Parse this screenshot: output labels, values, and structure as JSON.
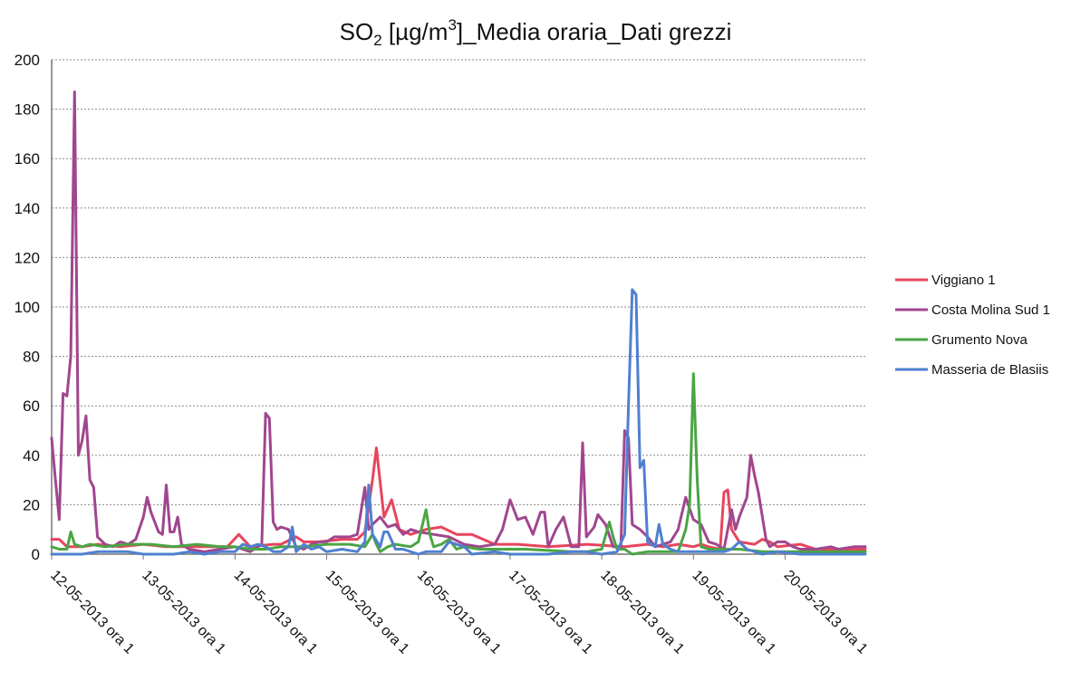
{
  "chart_data": {
    "type": "line",
    "title": {
      "main": "SO",
      "sub": "2",
      "unit_start": " [µg/m",
      "unit_sup": "3",
      "rest": "]_Media oraria_Dati grezzi"
    },
    "xlabel": "",
    "ylabel": "",
    "ylim": [
      0,
      200
    ],
    "yticks": [
      0,
      20,
      40,
      60,
      80,
      100,
      120,
      140,
      160,
      180,
      200
    ],
    "x_range": [
      0,
      213
    ],
    "grid": true,
    "legend": "right",
    "x_tick_positions": [
      0,
      24,
      48,
      72,
      96,
      120,
      144,
      168,
      192
    ],
    "x_tick_labels": [
      "12-05-2013 ora 1",
      "13-05-2013 ora 1",
      "14-05-2013 ora 1",
      "15-05-2013 ora 1",
      "16-05-2013 ora 1",
      "17-05-2013 ora 1",
      "18-05-2013 ora 1",
      "19-05-2013 ora 1",
      "20-05-2013 ora 1"
    ],
    "series": [
      {
        "name": "Viggiano 1",
        "color": "#e8455e",
        "points": [
          [
            0,
            6
          ],
          [
            2,
            6
          ],
          [
            4,
            3
          ],
          [
            8,
            3
          ],
          [
            12,
            4
          ],
          [
            18,
            3
          ],
          [
            24,
            4
          ],
          [
            30,
            3
          ],
          [
            40,
            3
          ],
          [
            46,
            3
          ],
          [
            49,
            8
          ],
          [
            52,
            3
          ],
          [
            58,
            4
          ],
          [
            60,
            4
          ],
          [
            64,
            7
          ],
          [
            66,
            5
          ],
          [
            70,
            5
          ],
          [
            76,
            6
          ],
          [
            80,
            6
          ],
          [
            82,
            9
          ],
          [
            84,
            30
          ],
          [
            85,
            43
          ],
          [
            87,
            15
          ],
          [
            89,
            22
          ],
          [
            91,
            10
          ],
          [
            94,
            8
          ],
          [
            98,
            10
          ],
          [
            102,
            11
          ],
          [
            106,
            8
          ],
          [
            110,
            8
          ],
          [
            116,
            4
          ],
          [
            122,
            4
          ],
          [
            130,
            3
          ],
          [
            140,
            4
          ],
          [
            150,
            3
          ],
          [
            156,
            4
          ],
          [
            160,
            3
          ],
          [
            164,
            4
          ],
          [
            168,
            3
          ],
          [
            170,
            4
          ],
          [
            172,
            3
          ],
          [
            175,
            2
          ],
          [
            176,
            25
          ],
          [
            177,
            26
          ],
          [
            178,
            10
          ],
          [
            180,
            5
          ],
          [
            184,
            4
          ],
          [
            186,
            6
          ],
          [
            188,
            5
          ],
          [
            190,
            3
          ],
          [
            196,
            4
          ],
          [
            200,
            2
          ],
          [
            206,
            2
          ],
          [
            213,
            2
          ]
        ]
      },
      {
        "name": "Costa Molina Sud 1",
        "color": "#a0468f",
        "points": [
          [
            0,
            47
          ],
          [
            1,
            30
          ],
          [
            2,
            14
          ],
          [
            3,
            65
          ],
          [
            4,
            64
          ],
          [
            5,
            80
          ],
          [
            6,
            187
          ],
          [
            7,
            40
          ],
          [
            8,
            46
          ],
          [
            9,
            56
          ],
          [
            10,
            30
          ],
          [
            11,
            27
          ],
          [
            12,
            7
          ],
          [
            14,
            4
          ],
          [
            16,
            3
          ],
          [
            18,
            5
          ],
          [
            20,
            4
          ],
          [
            22,
            6
          ],
          [
            24,
            15
          ],
          [
            25,
            23
          ],
          [
            26,
            17
          ],
          [
            28,
            9
          ],
          [
            29,
            8
          ],
          [
            30,
            28
          ],
          [
            31,
            9
          ],
          [
            32,
            9
          ],
          [
            33,
            15
          ],
          [
            34,
            4
          ],
          [
            36,
            2
          ],
          [
            40,
            1
          ],
          [
            44,
            2
          ],
          [
            48,
            3
          ],
          [
            50,
            2
          ],
          [
            52,
            1
          ],
          [
            55,
            4
          ],
          [
            56,
            57
          ],
          [
            57,
            55
          ],
          [
            58,
            13
          ],
          [
            59,
            10
          ],
          [
            60,
            11
          ],
          [
            62,
            10
          ],
          [
            64,
            3
          ],
          [
            66,
            2
          ],
          [
            68,
            4
          ],
          [
            70,
            5
          ],
          [
            72,
            5
          ],
          [
            74,
            7
          ],
          [
            76,
            7
          ],
          [
            78,
            7
          ],
          [
            80,
            8
          ],
          [
            82,
            27
          ],
          [
            83,
            10
          ],
          [
            84,
            12
          ],
          [
            86,
            15
          ],
          [
            88,
            11
          ],
          [
            90,
            12
          ],
          [
            92,
            8
          ],
          [
            94,
            10
          ],
          [
            96,
            9
          ],
          [
            100,
            8
          ],
          [
            104,
            7
          ],
          [
            108,
            4
          ],
          [
            112,
            3
          ],
          [
            116,
            4
          ],
          [
            118,
            10
          ],
          [
            120,
            22
          ],
          [
            122,
            14
          ],
          [
            124,
            15
          ],
          [
            126,
            8
          ],
          [
            128,
            17
          ],
          [
            129,
            17
          ],
          [
            130,
            3
          ],
          [
            132,
            10
          ],
          [
            134,
            15
          ],
          [
            136,
            3
          ],
          [
            138,
            3
          ],
          [
            139,
            45
          ],
          [
            140,
            7
          ],
          [
            142,
            11
          ],
          [
            143,
            16
          ],
          [
            145,
            12
          ],
          [
            147,
            3
          ],
          [
            149,
            3
          ],
          [
            150,
            50
          ],
          [
            151,
            47
          ],
          [
            152,
            12
          ],
          [
            154,
            10
          ],
          [
            156,
            7
          ],
          [
            158,
            3
          ],
          [
            162,
            5
          ],
          [
            164,
            10
          ],
          [
            166,
            23
          ],
          [
            168,
            14
          ],
          [
            170,
            12
          ],
          [
            172,
            5
          ],
          [
            174,
            4
          ],
          [
            176,
            2
          ],
          [
            178,
            18
          ],
          [
            179,
            10
          ],
          [
            180,
            15
          ],
          [
            182,
            23
          ],
          [
            183,
            40
          ],
          [
            184,
            32
          ],
          [
            185,
            25
          ],
          [
            187,
            6
          ],
          [
            188,
            3
          ],
          [
            190,
            5
          ],
          [
            192,
            5
          ],
          [
            194,
            3
          ],
          [
            196,
            2
          ],
          [
            200,
            2
          ],
          [
            204,
            3
          ],
          [
            206,
            2
          ],
          [
            210,
            3
          ],
          [
            213,
            3
          ]
        ]
      },
      {
        "name": "Grumento Nova",
        "color": "#4aa544",
        "points": [
          [
            0,
            3
          ],
          [
            2,
            2
          ],
          [
            4,
            2
          ],
          [
            5,
            9
          ],
          [
            6,
            4
          ],
          [
            8,
            3
          ],
          [
            10,
            4
          ],
          [
            14,
            3
          ],
          [
            20,
            4
          ],
          [
            26,
            4
          ],
          [
            32,
            3
          ],
          [
            38,
            4
          ],
          [
            44,
            3
          ],
          [
            48,
            3
          ],
          [
            52,
            2
          ],
          [
            56,
            2
          ],
          [
            60,
            3
          ],
          [
            66,
            3
          ],
          [
            72,
            4
          ],
          [
            78,
            4
          ],
          [
            82,
            3
          ],
          [
            84,
            8
          ],
          [
            85,
            4
          ],
          [
            86,
            1
          ],
          [
            88,
            3
          ],
          [
            90,
            4
          ],
          [
            94,
            3
          ],
          [
            96,
            5
          ],
          [
            98,
            18
          ],
          [
            99,
            8
          ],
          [
            100,
            3
          ],
          [
            102,
            4
          ],
          [
            104,
            6
          ],
          [
            106,
            2
          ],
          [
            108,
            3
          ],
          [
            112,
            2
          ],
          [
            116,
            2
          ],
          [
            124,
            2
          ],
          [
            136,
            1
          ],
          [
            140,
            1
          ],
          [
            144,
            2
          ],
          [
            146,
            13
          ],
          [
            147,
            7
          ],
          [
            148,
            2
          ],
          [
            150,
            2
          ],
          [
            152,
            0
          ],
          [
            156,
            1
          ],
          [
            160,
            1
          ],
          [
            164,
            1
          ],
          [
            166,
            10
          ],
          [
            167,
            20
          ],
          [
            168,
            73
          ],
          [
            169,
            30
          ],
          [
            170,
            3
          ],
          [
            172,
            2
          ],
          [
            176,
            2
          ],
          [
            180,
            2
          ],
          [
            186,
            1
          ],
          [
            190,
            1
          ],
          [
            196,
            1
          ],
          [
            202,
            1
          ],
          [
            208,
            1
          ],
          [
            213,
            1
          ]
        ]
      },
      {
        "name": "Masseria de Blasiis",
        "color": "#4f80d0",
        "points": [
          [
            0,
            0
          ],
          [
            4,
            0
          ],
          [
            8,
            0
          ],
          [
            12,
            1
          ],
          [
            16,
            1
          ],
          [
            20,
            1
          ],
          [
            24,
            0
          ],
          [
            28,
            0
          ],
          [
            32,
            0
          ],
          [
            36,
            1
          ],
          [
            40,
            0
          ],
          [
            44,
            1
          ],
          [
            48,
            1
          ],
          [
            50,
            4
          ],
          [
            52,
            3
          ],
          [
            54,
            4
          ],
          [
            56,
            3
          ],
          [
            58,
            1
          ],
          [
            60,
            1
          ],
          [
            62,
            3
          ],
          [
            63,
            11
          ],
          [
            64,
            1
          ],
          [
            66,
            4
          ],
          [
            68,
            2
          ],
          [
            70,
            3
          ],
          [
            72,
            1
          ],
          [
            76,
            2
          ],
          [
            80,
            1
          ],
          [
            82,
            5
          ],
          [
            83,
            28
          ],
          [
            84,
            8
          ],
          [
            86,
            3
          ],
          [
            87,
            9
          ],
          [
            88,
            9
          ],
          [
            90,
            2
          ],
          [
            92,
            2
          ],
          [
            94,
            1
          ],
          [
            96,
            0
          ],
          [
            98,
            1
          ],
          [
            100,
            1
          ],
          [
            102,
            1
          ],
          [
            104,
            5
          ],
          [
            106,
            4
          ],
          [
            108,
            3
          ],
          [
            110,
            0
          ],
          [
            116,
            1
          ],
          [
            120,
            0
          ],
          [
            130,
            0
          ],
          [
            136,
            1
          ],
          [
            140,
            1
          ],
          [
            144,
            0
          ],
          [
            148,
            1
          ],
          [
            150,
            8
          ],
          [
            151,
            60
          ],
          [
            152,
            107
          ],
          [
            153,
            105
          ],
          [
            154,
            35
          ],
          [
            155,
            38
          ],
          [
            156,
            5
          ],
          [
            158,
            3
          ],
          [
            159,
            12
          ],
          [
            160,
            4
          ],
          [
            162,
            2
          ],
          [
            164,
            1
          ],
          [
            168,
            1
          ],
          [
            172,
            1
          ],
          [
            176,
            1
          ],
          [
            178,
            2
          ],
          [
            180,
            5
          ],
          [
            182,
            2
          ],
          [
            186,
            0
          ],
          [
            190,
            1
          ],
          [
            196,
            0
          ],
          [
            200,
            0
          ],
          [
            206,
            0
          ],
          [
            213,
            0
          ]
        ]
      }
    ]
  }
}
